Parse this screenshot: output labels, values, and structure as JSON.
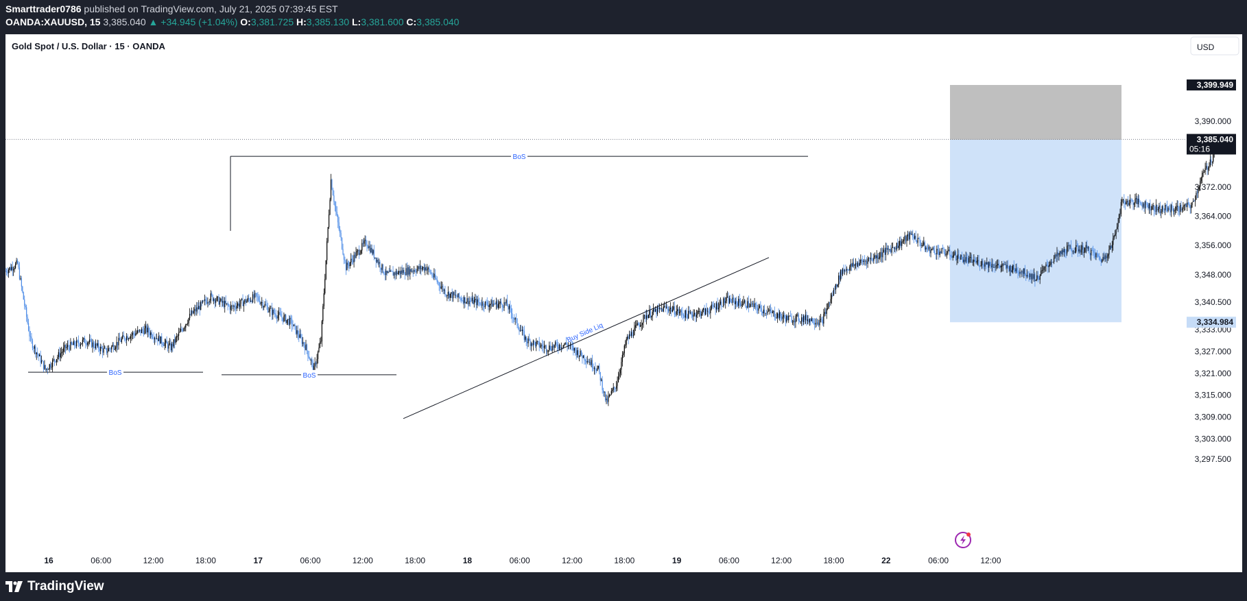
{
  "header": {
    "author": "Smarttrader0786",
    "published_text": "published on TradingView.com, July 21, 2025 07:39:45 EST",
    "symbol": "OANDA:XAUUSD, 15",
    "last_price": "3,385.040",
    "change": "▲ +34.945 (+1.04%)",
    "open_label": "O:",
    "open": "3,381.725",
    "high_label": "H:",
    "high": "3,385.130",
    "low_label": "L:",
    "low": "3,381.600",
    "close_label": "C:",
    "close": "3,385.040"
  },
  "chart_title": "Gold Spot / U.S. Dollar · 15 · OANDA",
  "currency_button": "USD",
  "footer": {
    "brand": "TradingView"
  },
  "colors": {
    "up_candle": "#000000",
    "down_candle": "#4a8ae6",
    "annotation_text": "#2962ff",
    "target_zone": "#cfe2f9",
    "stop_zone": "#bfbfbf",
    "badge_dark": "#131722",
    "badge_gray": "#787b86",
    "badge_blue": "#c6dcf7"
  },
  "chart_data": {
    "type": "candlestick",
    "timeframe": "15",
    "x_ticks": [
      "16",
      "06:00",
      "12:00",
      "18:00",
      "17",
      "06:00",
      "12:00",
      "18:00",
      "18",
      "06:00",
      "12:00",
      "18:00",
      "19",
      "06:00",
      "12:00",
      "18:00",
      "22",
      "06:00",
      "12:00"
    ],
    "y_ticks": [
      "3,390.000",
      "3,372.000",
      "3,364.000",
      "3,356.000",
      "3,348.000",
      "3,340.500",
      "3,333.000",
      "3,327.000",
      "3,321.000",
      "3,315.000",
      "3,309.000",
      "3,303.000",
      "3,297.500"
    ],
    "y_range": [
      3292,
      3410
    ],
    "price_badges": {
      "stop": "3,399.949",
      "current": "3,385.040",
      "countdown": "05:16",
      "entry": "3,384.954",
      "target": "3,334.984"
    },
    "annotations": {
      "bos_1": "BoS",
      "bos_2": "BoS",
      "bos_3": "BoS",
      "trendline": "Buy Side Liq"
    },
    "close_path": [
      [
        0,
        3349
      ],
      [
        12,
        3351
      ],
      [
        25,
        3330
      ],
      [
        40,
        3322
      ],
      [
        60,
        3328
      ],
      [
        80,
        3330
      ],
      [
        100,
        3327
      ],
      [
        120,
        3331
      ],
      [
        140,
        3333
      ],
      [
        165,
        3328
      ],
      [
        185,
        3337
      ],
      [
        205,
        3342
      ],
      [
        225,
        3339
      ],
      [
        250,
        3342
      ],
      [
        265,
        3338
      ],
      [
        285,
        3335
      ],
      [
        300,
        3328
      ],
      [
        308,
        3322
      ],
      [
        315,
        3330
      ],
      [
        320,
        3352
      ],
      [
        325,
        3374
      ],
      [
        330,
        3365
      ],
      [
        340,
        3350
      ],
      [
        360,
        3357
      ],
      [
        380,
        3348
      ],
      [
        400,
        3349
      ],
      [
        420,
        3350
      ],
      [
        440,
        3343
      ],
      [
        460,
        3341
      ],
      [
        480,
        3340
      ],
      [
        500,
        3340
      ],
      [
        520,
        3330
      ],
      [
        540,
        3328
      ],
      [
        560,
        3329
      ],
      [
        580,
        3325
      ],
      [
        592,
        3322
      ],
      [
        600,
        3313
      ],
      [
        610,
        3318
      ],
      [
        620,
        3330
      ],
      [
        640,
        3337
      ],
      [
        660,
        3339
      ],
      [
        680,
        3337
      ],
      [
        700,
        3338
      ],
      [
        720,
        3341
      ],
      [
        740,
        3340
      ],
      [
        760,
        3338
      ],
      [
        780,
        3336
      ],
      [
        800,
        3336
      ],
      [
        815,
        3335
      ],
      [
        825,
        3342
      ],
      [
        835,
        3349
      ],
      [
        850,
        3351
      ],
      [
        870,
        3353
      ],
      [
        890,
        3356
      ],
      [
        905,
        3359
      ],
      [
        920,
        3355
      ],
      [
        940,
        3354
      ],
      [
        960,
        3352
      ],
      [
        980,
        3351
      ],
      [
        1000,
        3350
      ],
      [
        1015,
        3349
      ],
      [
        1030,
        3347
      ],
      [
        1045,
        3352
      ],
      [
        1060,
        3355
      ],
      [
        1080,
        3355
      ],
      [
        1095,
        3352
      ],
      [
        1105,
        3356
      ],
      [
        1115,
        3368
      ],
      [
        1130,
        3368
      ],
      [
        1150,
        3366
      ],
      [
        1170,
        3366
      ],
      [
        1185,
        3367
      ],
      [
        1195,
        3375
      ],
      [
        1205,
        3380
      ],
      [
        1210,
        3385
      ]
    ],
    "position_tool": {
      "type": "short",
      "entry": 3384.954,
      "stop": 3399.949,
      "target": 3334.984
    }
  }
}
